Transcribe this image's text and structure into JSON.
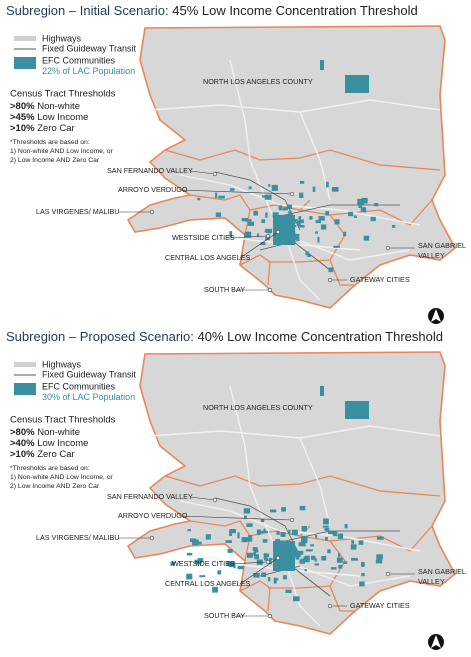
{
  "panels": [
    {
      "title_prefix": "Subregion – Initial Scenario:",
      "title_suffix": "45% Low Income Concentration Threshold",
      "legend": {
        "highways": "Highways",
        "transit": "Fixed Guideway Transit",
        "efc": "EFC Communities",
        "population_pct": "22%",
        "population_text": "of LAC Population"
      },
      "thresholds": {
        "heading": "Census Tract Thresholds",
        "items": [
          {
            "value": ">80%",
            "label": "Non-white"
          },
          {
            "value": ">45%",
            "label": "Low Income"
          },
          {
            "value": ">10%",
            "label": "Zero Car"
          }
        ]
      },
      "note": [
        "*Thresholds are based on:",
        "1) Non-white AND Low Income, or",
        "2) Low Income AND Zero Car"
      ],
      "regions": {
        "north": "NORTH LOS ANGELES COUNTY",
        "sfv": "SAN FERNANDO VALLEY",
        "arroyo": "ARROYO VERDUGO",
        "malibu": "LAS VIRGENES/ MALIBU",
        "westside": "WESTSIDE CITIES",
        "central": "CENTRAL LOS ANGELES",
        "southbay": "SOUTH BAY",
        "gateway": "GATEWAY CITIES",
        "sgv": [
          "SAN GABRIEL",
          "VALLEY"
        ]
      }
    },
    {
      "title_prefix": "Subregion – Proposed Scenario:",
      "title_suffix": "40% Low Income Concentration Threshold",
      "legend": {
        "highways": "Highways",
        "transit": "Fixed Guideway Transit",
        "efc": "EFC Communities",
        "population_pct": "30%",
        "population_text": "of LAC Population"
      },
      "thresholds": {
        "heading": "Census Tract Thresholds",
        "items": [
          {
            "value": ">80%",
            "label": "Non-white"
          },
          {
            "value": ">40%",
            "label": "Low Income"
          },
          {
            "value": ">10%",
            "label": "Zero Car"
          }
        ]
      },
      "note": [
        "*Thresholds are based on:",
        "1) Non-white AND Low Income, or",
        "2) Low Income AND Zero Car"
      ],
      "regions": {
        "north": "NORTH LOS ANGELES COUNTY",
        "sfv": "SAN FERNANDO VALLEY",
        "arroyo": "ARROYO VERDUGO",
        "malibu": "LAS VIRGENES/ MALIBU",
        "westside": "WESTSIDE CITIES",
        "central": "CENTRAL LOS ANGELES",
        "southbay": "SOUTH BAY",
        "gateway": "GATEWAY CITIES",
        "sgv": [
          "SAN GABRIEL",
          "VALLEY"
        ]
      }
    }
  ]
}
